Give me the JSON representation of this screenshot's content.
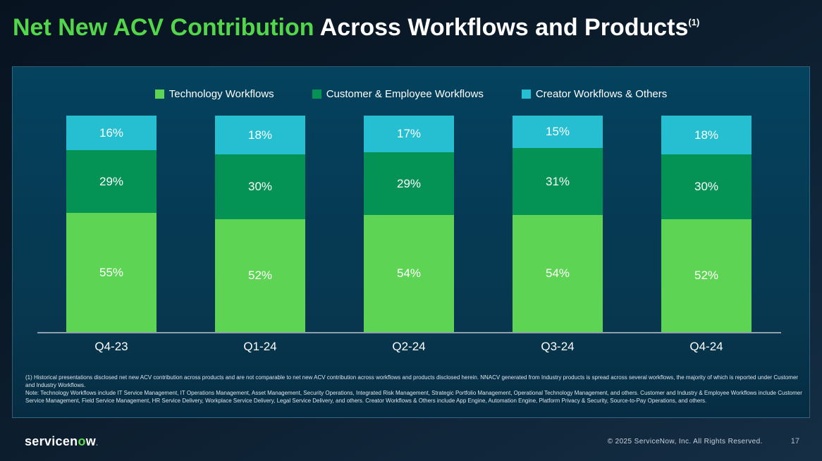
{
  "slide": {
    "title": {
      "highlight": "Net New ACV Contribution",
      "rest": " Across Workflows and Products",
      "superscript": "(1)"
    },
    "footnotes": {
      "note1": "(1) Historical presentations disclosed net new ACV contribution across products and are not comparable to net new ACV contribution across workflows and products disclosed herein. NNACV generated from Industry products is spread across several workflows, the majority of which is reported under Customer and Industry Workflows.",
      "note2": "Note: Technology Workflows include IT Service Management, IT Operations Management, Asset Management, Security Operations, Integrated Risk Management, Strategic Portfolio Management, Operational Technology Management, and others. Customer and Industry & Employee Workflows include Customer Service Management, Field Service Management, HR Service Delivery, Workplace Service Delivery, Legal Service Delivery, and others. Creator Workflows & Others include App Engine, Automation Engine, Platform Privacy & Security, Source-to-Pay Operations, and others."
    },
    "footer": {
      "logo_prefix": "servicen",
      "logo_o": "o",
      "logo_suffix": "w",
      "logo_dot": ".",
      "copyright": "© 2025 ServiceNow, Inc. All Rights Reserved.",
      "page_number": "17"
    }
  },
  "chart_data": {
    "type": "bar",
    "stacked": true,
    "title": "Net New ACV Contribution Across Workflows and Products",
    "categories": [
      "Q4-23",
      "Q1-24",
      "Q2-24",
      "Q3-24",
      "Q4-24"
    ],
    "series": [
      {
        "name": "Technology Workflows",
        "color": "#5ed454",
        "values": [
          55,
          52,
          54,
          54,
          52
        ]
      },
      {
        "name": "Customer & Employee Workflows",
        "color": "#049255",
        "values": [
          29,
          30,
          29,
          31,
          30
        ]
      },
      {
        "name": "Creator Workflows & Others",
        "color": "#26bfd1",
        "values": [
          16,
          18,
          17,
          15,
          18
        ]
      }
    ],
    "value_suffix": "%",
    "ylim": [
      0,
      100
    ],
    "grid": false,
    "legend_position": "top",
    "stack_order_bottom_to_top": [
      "Technology Workflows",
      "Customer & Employee Workflows",
      "Creator Workflows & Others"
    ]
  },
  "colors": {
    "title_highlight": "#53d74a",
    "logo_green": "#62d84e",
    "panel_background": "#063a54",
    "slide_background": "#0b1b2a",
    "axis_line": "#92a0ae"
  }
}
